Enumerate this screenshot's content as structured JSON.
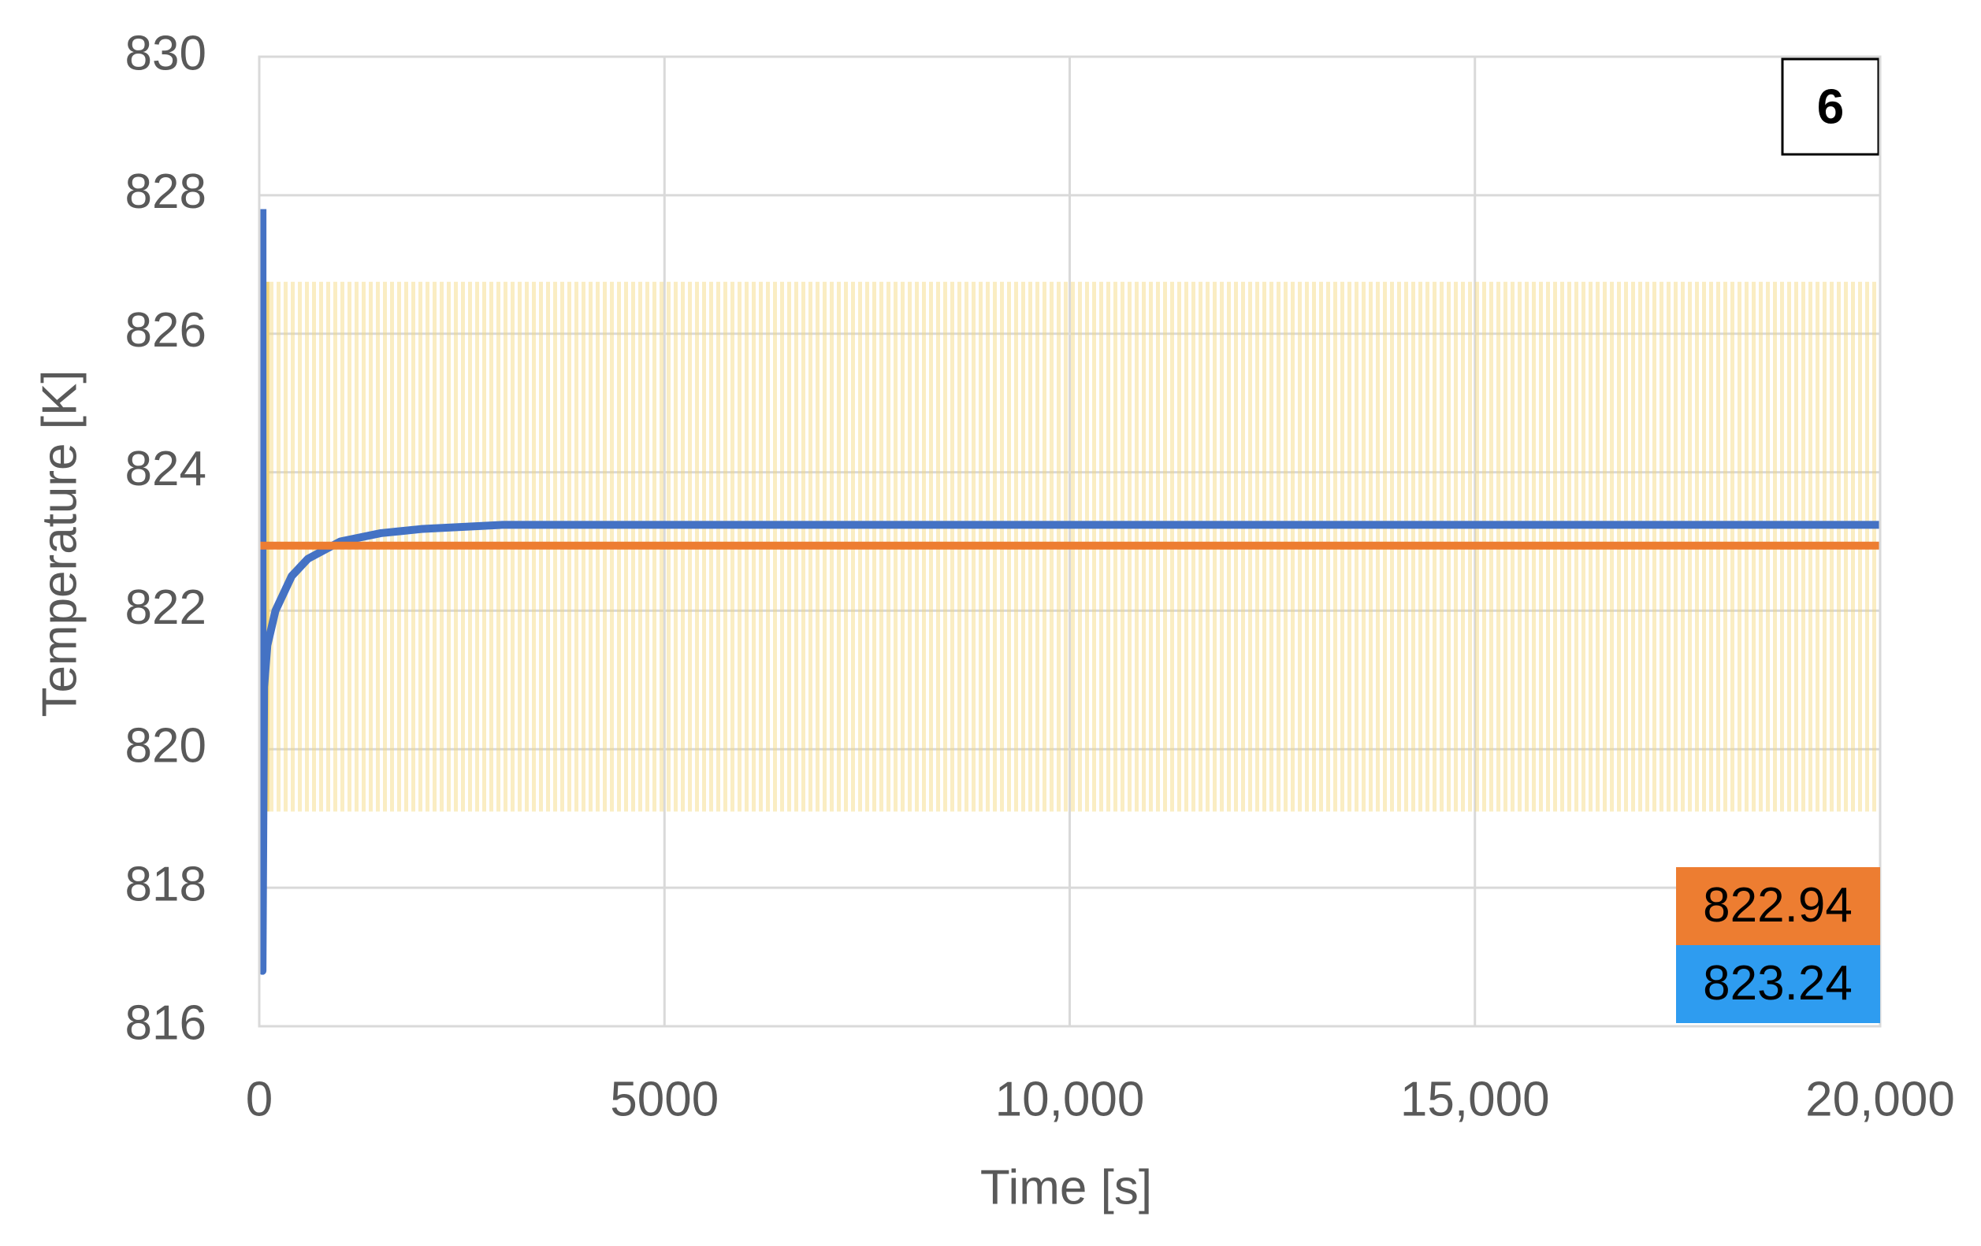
{
  "chart_data": {
    "type": "line",
    "panel_label": "6",
    "x_label": "Time [s]",
    "y_label": "Temperature [K]",
    "xlim": [
      0,
      20000
    ],
    "xticks": [
      0,
      5000,
      {
        "value": 10000,
        "label": "10,000"
      },
      {
        "value": 15000,
        "label": "15,000"
      },
      {
        "value": 20000,
        "label": "20,000"
      }
    ],
    "ylim": [
      816,
      830
    ],
    "yticks": [
      816,
      818,
      820,
      822,
      824,
      826,
      828,
      830
    ],
    "grid": true,
    "band": {
      "x": [
        100,
        20000
      ],
      "lower": 819.1,
      "upper": 826.75,
      "color": "#f5d77a"
    },
    "series": [
      {
        "color": "#4472c4",
        "x": [
          40,
          40,
          60,
          100,
          200,
          400,
          600,
          1000,
          1500,
          2000,
          3000,
          20000
        ],
        "values": [
          827.8,
          816.8,
          820.9,
          821.5,
          822.0,
          822.5,
          822.75,
          823.0,
          823.12,
          823.18,
          823.24,
          823.24
        ]
      },
      {
        "color": "#ed7d31",
        "x": [
          0,
          20000
        ],
        "values": [
          822.94,
          822.94
        ]
      }
    ],
    "annotations": [
      {
        "value": 822.94,
        "color": "#ed7d31"
      },
      {
        "value": 823.24,
        "color": "#2e9cf0"
      }
    ]
  }
}
